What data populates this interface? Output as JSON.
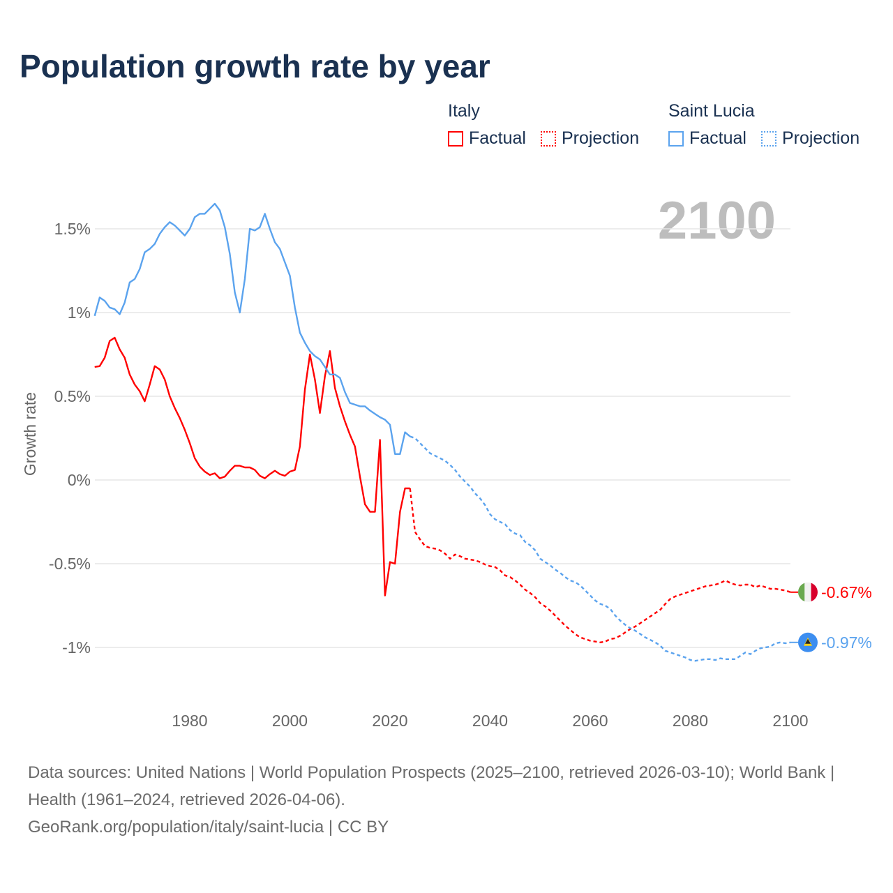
{
  "title": "Population growth rate by year",
  "legend": {
    "groups": [
      {
        "name": "Italy",
        "factual": "Factual",
        "projection": "Projection",
        "color": "#ff0000"
      },
      {
        "name": "Saint Lucia",
        "factual": "Factual",
        "projection": "Projection",
        "color": "#5ba3ee"
      }
    ]
  },
  "footer": {
    "sources": "Data sources: United Nations | World Population Prospects (2025–2100, retrieved 2026-03-10); World Bank | Health (1961–2024, retrieved 2026-04-06).",
    "link": "GeoRank.org/population/italy/saint-lucia | CC BY"
  },
  "chart_data": {
    "type": "line",
    "title": "Population growth rate by year",
    "ylabel": "Growth rate",
    "xlabel": "",
    "year_display": "2100",
    "xlim": [
      1961,
      2100
    ],
    "ylim": [
      -1.25,
      1.75
    ],
    "x_ticks": [
      1980,
      2000,
      2020,
      2040,
      2060,
      2080,
      2100
    ],
    "y_ticks": [
      {
        "value": 1.5,
        "label": "1.5%"
      },
      {
        "value": 1,
        "label": "1%"
      },
      {
        "value": 0.5,
        "label": "0.5%"
      },
      {
        "value": 0,
        "label": "0%"
      },
      {
        "value": -0.5,
        "label": "-0.5%"
      },
      {
        "value": -1,
        "label": "-1%"
      }
    ],
    "grid": true,
    "series": [
      {
        "name": "Italy",
        "color": "#ff0000",
        "end_label": "-0.67%",
        "flag": "italy-flag",
        "factual_start": 1961,
        "factual": [
          0.675,
          0.68,
          0.73,
          0.83,
          0.85,
          0.78,
          0.73,
          0.63,
          0.57,
          0.53,
          0.47,
          0.57,
          0.68,
          0.66,
          0.6,
          0.5,
          0.43,
          0.37,
          0.3,
          0.22,
          0.13,
          0.08,
          0.05,
          0.03,
          0.04,
          0.01,
          0.02,
          0.055,
          0.085,
          0.085,
          0.075,
          0.075,
          0.06,
          0.025,
          0.01,
          0.035,
          0.055,
          0.035,
          0.025,
          0.05,
          0.06,
          0.2,
          0.54,
          0.75,
          0.6,
          0.4,
          0.62,
          0.77,
          0.55,
          0.44,
          0.35,
          0.27,
          0.2,
          0.02,
          -0.145,
          -0.19,
          -0.19,
          0.24,
          -0.69,
          -0.49,
          -0.5,
          -0.19,
          -0.05,
          -0.05
        ],
        "projection_start": 2025,
        "projection": [
          -0.31,
          -0.355,
          -0.395,
          -0.405,
          -0.41,
          -0.42,
          -0.44,
          -0.47,
          -0.445,
          -0.455,
          -0.47,
          -0.475,
          -0.48,
          -0.49,
          -0.505,
          -0.515,
          -0.52,
          -0.54,
          -0.57,
          -0.58,
          -0.6,
          -0.625,
          -0.655,
          -0.675,
          -0.7,
          -0.735,
          -0.755,
          -0.78,
          -0.81,
          -0.84,
          -0.87,
          -0.895,
          -0.92,
          -0.94,
          -0.95,
          -0.96,
          -0.965,
          -0.97,
          -0.965,
          -0.95,
          -0.945,
          -0.93,
          -0.91,
          -0.89,
          -0.875,
          -0.855,
          -0.835,
          -0.815,
          -0.795,
          -0.775,
          -0.74,
          -0.71,
          -0.695,
          -0.685,
          -0.675,
          -0.665,
          -0.655,
          -0.645,
          -0.635,
          -0.63,
          -0.625,
          -0.615,
          -0.6,
          -0.615,
          -0.625,
          -0.63,
          -0.625,
          -0.625,
          -0.64,
          -0.63,
          -0.64,
          -0.65,
          -0.65,
          -0.655,
          -0.66,
          -0.67
        ]
      },
      {
        "name": "Saint Lucia",
        "color": "#5ba3ee",
        "end_label": "-0.97%",
        "flag": "saint-lucia-flag",
        "factual_start": 1961,
        "factual": [
          0.98,
          1.09,
          1.07,
          1.03,
          1.02,
          0.99,
          1.06,
          1.18,
          1.2,
          1.26,
          1.36,
          1.38,
          1.41,
          1.47,
          1.51,
          1.54,
          1.52,
          1.49,
          1.46,
          1.5,
          1.57,
          1.59,
          1.59,
          1.62,
          1.65,
          1.61,
          1.51,
          1.35,
          1.12,
          1.0,
          1.2,
          1.5,
          1.49,
          1.51,
          1.59,
          1.5,
          1.42,
          1.38,
          1.3,
          1.22,
          1.03,
          0.88,
          0.82,
          0.77,
          0.74,
          0.72,
          0.675,
          0.63,
          0.63,
          0.61,
          0.525,
          0.46,
          0.45,
          0.44,
          0.44,
          0.415,
          0.395,
          0.375,
          0.36,
          0.33,
          0.155,
          0.155,
          0.285,
          0.26
        ],
        "projection_start": 2025,
        "projection": [
          0.25,
          0.22,
          0.19,
          0.16,
          0.145,
          0.13,
          0.115,
          0.09,
          0.06,
          0.02,
          -0.01,
          -0.04,
          -0.08,
          -0.11,
          -0.15,
          -0.205,
          -0.235,
          -0.25,
          -0.265,
          -0.3,
          -0.32,
          -0.33,
          -0.37,
          -0.39,
          -0.42,
          -0.47,
          -0.49,
          -0.51,
          -0.535,
          -0.555,
          -0.58,
          -0.6,
          -0.61,
          -0.63,
          -0.66,
          -0.69,
          -0.72,
          -0.74,
          -0.75,
          -0.77,
          -0.81,
          -0.84,
          -0.865,
          -0.885,
          -0.9,
          -0.92,
          -0.94,
          -0.955,
          -0.97,
          -0.99,
          -1.02,
          -1.03,
          -1.04,
          -1.05,
          -1.06,
          -1.075,
          -1.08,
          -1.075,
          -1.07,
          -1.07,
          -1.075,
          -1.065,
          -1.07,
          -1.07,
          -1.07,
          -1.05,
          -1.03,
          -1.04,
          -1.02,
          -1.005,
          -1.0,
          -0.995,
          -0.975,
          -0.97,
          -0.975,
          -0.97
        ]
      }
    ]
  }
}
